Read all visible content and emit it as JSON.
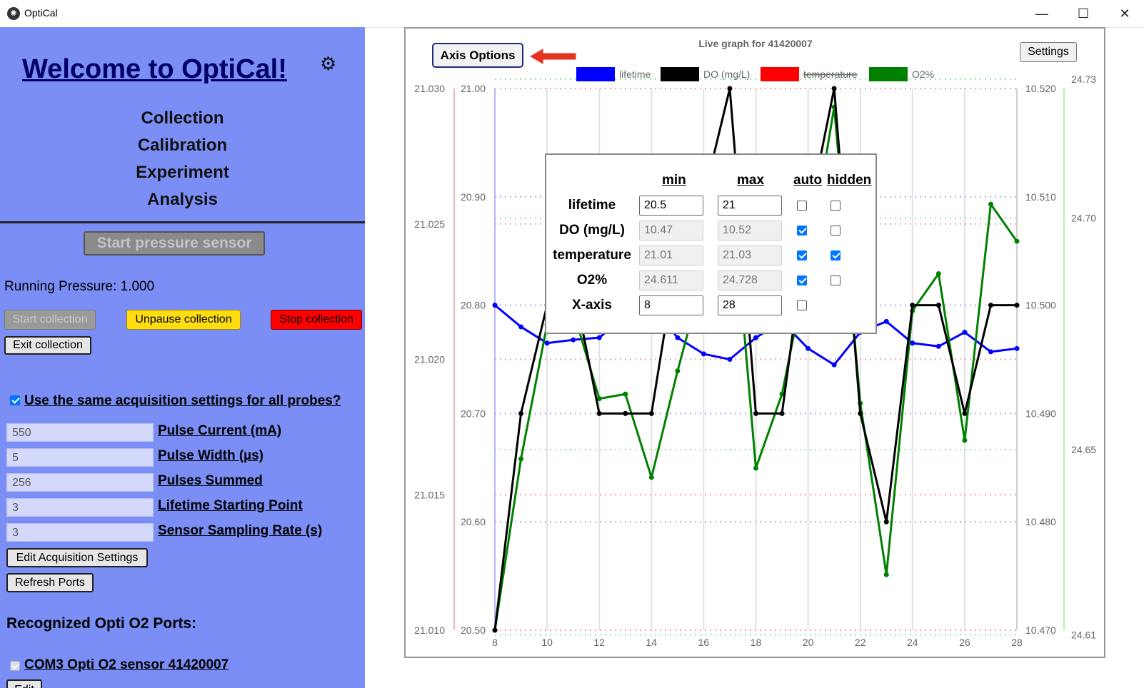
{
  "window": {
    "title": "OptiCal",
    "minimize": "—",
    "maximize": "☐",
    "close": "✕"
  },
  "sidebar": {
    "welcome": "Welcome to OptiCal!",
    "nav": [
      "Collection",
      "Calibration",
      "Experiment",
      "Analysis"
    ],
    "start_pressure_label": "Start pressure sensor",
    "running_pressure": "Running Pressure: 1.000",
    "start_collection_label": "Start collection",
    "unpause_label": "Unpause collection",
    "stop_label": "Stop collection",
    "exit_label": "Exit collection",
    "same_settings_label": "Use the same acquisition settings for all probes?",
    "same_settings_checked": true,
    "fields": [
      {
        "value": "550",
        "label": "Pulse Current (mA)"
      },
      {
        "value": "5",
        "label": "Pulse Width (µs)"
      },
      {
        "value": "256",
        "label": "Pulses Summed"
      },
      {
        "value": "3",
        "label": "Lifetime Starting Point"
      },
      {
        "value": "3",
        "label": "Sensor Sampling Rate (s)"
      }
    ],
    "edit_acq_label": "Edit Acquisition Settings",
    "refresh_label": "Refresh Ports",
    "ports_header": "Recognized Opti O2 Ports:",
    "port_label": "COM3 Opti O2 sensor 41420007",
    "edit_label": "Edit"
  },
  "chart_panel": {
    "axis_options_label": "Axis Options",
    "settings_label": "Settings"
  },
  "axis_popup": {
    "headers": {
      "min": "min",
      "max": "max",
      "auto": "auto",
      "hidden": "hidden"
    },
    "rows": [
      {
        "label": "lifetime",
        "min": "20.5",
        "max": "21",
        "auto": false,
        "hidden": false
      },
      {
        "label": "DO (mg/L)",
        "min": "10.47",
        "max": "10.52",
        "auto": true,
        "hidden": false
      },
      {
        "label": "temperature",
        "min": "21.01",
        "max": "21.03",
        "auto": true,
        "hidden": true
      },
      {
        "label": "O2%",
        "min": "24.611",
        "max": "24.728",
        "auto": true,
        "hidden": false
      },
      {
        "label": "X-axis",
        "min": "8",
        "max": "28",
        "auto": false,
        "hidden": null
      }
    ]
  },
  "chart_data": {
    "type": "line",
    "title": "Live graph for 41420007",
    "x": [
      8,
      9,
      10,
      11,
      12,
      13,
      14,
      15,
      16,
      17,
      18,
      19,
      20,
      21,
      22,
      23,
      24,
      25,
      26,
      27,
      28
    ],
    "xlim": [
      8,
      28
    ],
    "x_ticks": [
      "8",
      "10",
      "12",
      "14",
      "16",
      "18",
      "20",
      "22",
      "24",
      "26",
      "28"
    ],
    "legend": [
      {
        "name": "lifetime",
        "color": "#0000ff",
        "hidden": false
      },
      {
        "name": "DO (mg/L)",
        "color": "#000000",
        "hidden": false
      },
      {
        "name": "temperature",
        "color": "#ff0000",
        "hidden": true
      },
      {
        "name": "O2%",
        "color": "#008000",
        "hidden": false
      }
    ],
    "legend_position": "top",
    "axes": {
      "temperature": {
        "ticks": [
          "21.030",
          "21.025",
          "21.020",
          "21.015",
          "21.010"
        ],
        "range": [
          21.01,
          21.03
        ],
        "side": "left-outer"
      },
      "lifetime": {
        "ticks": [
          "21.00",
          "20.90",
          "20.80",
          "20.70",
          "20.60",
          "20.50"
        ],
        "range": [
          20.5,
          21.0
        ],
        "side": "left-inner"
      },
      "do": {
        "ticks": [
          "10.520",
          "10.510",
          "10.500",
          "10.490",
          "10.480",
          "10.470"
        ],
        "range": [
          10.47,
          10.52
        ],
        "side": "right-inner"
      },
      "o2": {
        "ticks": [
          "24.73",
          "24.70",
          "24.65",
          "24.61"
        ],
        "range": [
          24.611,
          24.728
        ],
        "side": "right-outer"
      }
    },
    "series": [
      {
        "name": "lifetime",
        "axis": "lifetime",
        "color": "#0000ff",
        "values": [
          20.8,
          20.78,
          20.765,
          20.768,
          20.77,
          20.79,
          20.8,
          20.77,
          20.755,
          20.75,
          20.77,
          20.785,
          20.76,
          20.745,
          20.775,
          20.785,
          20.765,
          20.762,
          20.775,
          20.757,
          20.76
        ]
      },
      {
        "name": "DO (mg/L)",
        "axis": "do",
        "color": "#000000",
        "values": [
          10.47,
          10.49,
          10.5,
          10.502,
          10.49,
          10.49,
          10.49,
          10.505,
          10.51,
          10.52,
          10.49,
          10.49,
          10.508,
          10.52,
          10.49,
          10.48,
          10.5,
          10.5,
          10.49,
          10.5,
          10.5
        ]
      },
      {
        "name": "O2%",
        "axis": "o2",
        "color": "#008000",
        "values": [
          24.611,
          24.648,
          24.677,
          24.68,
          24.661,
          24.662,
          24.644,
          24.667,
          24.688,
          24.712,
          24.646,
          24.662,
          24.69,
          24.724,
          24.66,
          24.623,
          24.68,
          24.688,
          24.652,
          24.703,
          24.695
        ]
      }
    ]
  }
}
